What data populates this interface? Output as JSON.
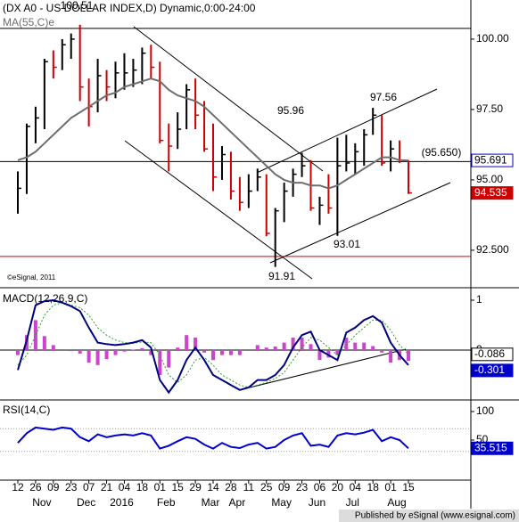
{
  "chart_data": [
    {
      "type": "ohlc",
      "title": "(DX A0 - US DOLLAR INDEX,D) Dynamic,0:00-24:00",
      "categories": [
        "12",
        null,
        "26",
        null,
        "09",
        null,
        "23",
        null,
        "07",
        null,
        "21",
        null,
        "04",
        null,
        "18",
        null,
        "01",
        null,
        "15",
        null,
        "29",
        null,
        "14",
        null,
        "28",
        null,
        "11",
        null,
        "25",
        null,
        "09",
        null,
        "23",
        null,
        "06",
        null,
        "20",
        null,
        "04",
        null,
        "18",
        null,
        "01",
        null,
        "15"
      ],
      "month_categories": [
        null,
        null,
        null,
        "Nov",
        null,
        null,
        null,
        null,
        "Dec",
        null,
        null,
        null,
        "2016",
        null,
        null,
        null,
        null,
        "Feb",
        null,
        null,
        null,
        null,
        "Mar",
        null,
        null,
        "Apr",
        null,
        null,
        null,
        null,
        "May",
        null,
        null,
        null,
        "Jun",
        null,
        null,
        null,
        "Jul",
        null,
        null,
        null,
        null,
        "Aug",
        null
      ],
      "high": [
        95.3,
        97.0,
        97.6,
        99.3,
        99.6,
        100.0,
        100.2,
        100.51,
        98.6,
        99.3,
        98.9,
        99.2,
        99.5,
        99.3,
        99.7,
        99.8,
        99.2,
        97.0,
        97.4,
        98.4,
        98.6,
        97.8,
        97.0,
        96.2,
        96.0,
        95.1,
        95.2,
        95.4,
        95.2,
        94.0,
        94.9,
        95.4,
        95.96,
        95.7,
        94.4,
        95.2,
        96.5,
        96.6,
        96.3,
        96.8,
        97.56,
        97.3,
        96.4,
        96.4,
        95.7
      ],
      "low": [
        93.8,
        94.5,
        96.3,
        96.8,
        98.6,
        98.9,
        99.3,
        97.8,
        96.9,
        97.4,
        97.8,
        97.9,
        98.2,
        98.3,
        98.4,
        98.6,
        96.3,
        95.3,
        96.1,
        96.8,
        96.8,
        96.0,
        94.6,
        95.0,
        94.3,
        93.9,
        94.0,
        94.6,
        93.0,
        91.91,
        93.5,
        94.4,
        95.1,
        93.9,
        93.4,
        93.8,
        93.01,
        95.3,
        95.2,
        95.5,
        96.6,
        95.5,
        95.3,
        95.6,
        94.5
      ],
      "close": [
        94.7,
        96.9,
        97.2,
        99.2,
        99.0,
        99.8,
        100.0,
        98.3,
        97.6,
        98.7,
        98.3,
        98.8,
        98.8,
        98.9,
        99.5,
        99.0,
        96.4,
        96.2,
        96.8,
        98.2,
        97.3,
        96.1,
        95.1,
        95.9,
        94.6,
        94.2,
        94.6,
        95.1,
        93.1,
        93.9,
        94.6,
        95.2,
        95.5,
        94.0,
        94.1,
        94.0,
        95.5,
        95.6,
        96.0,
        96.6,
        97.3,
        95.6,
        96.1,
        95.7,
        94.535
      ],
      "up_color": "#000000",
      "down_color": "#cc0000",
      "series": [
        {
          "name": "MA(55,C)e",
          "color": "#6e6e6e",
          "values": [
            95.7,
            95.8,
            96.0,
            96.3,
            96.6,
            96.9,
            97.2,
            97.4,
            97.6,
            97.8,
            98.0,
            98.1,
            98.3,
            98.4,
            98.5,
            98.6,
            98.5,
            98.2,
            98.0,
            97.9,
            97.8,
            97.6,
            97.3,
            97.0,
            96.7,
            96.4,
            96.1,
            95.8,
            95.5,
            95.2,
            95.0,
            94.9,
            94.9,
            94.8,
            94.8,
            94.7,
            94.8,
            95.0,
            95.2,
            95.4,
            95.6,
            95.8,
            95.8,
            95.7,
            95.691
          ]
        }
      ],
      "ylim": [
        91.2,
        101.39
      ],
      "yticks": [
        {
          "value": 100,
          "label": "100.00"
        },
        {
          "value": 97.5,
          "label": "97.50"
        },
        {
          "value": 95,
          "label": "95.00"
        },
        {
          "value": 92.5,
          "label": "92.500"
        }
      ],
      "levels": [
        {
          "value": 100.38,
          "color": "#000000"
        },
        {
          "value": 95.65,
          "color": "#000000"
        },
        {
          "value": 92.28,
          "color": "#cc0000"
        }
      ],
      "annotations": [
        "100.51",
        "95.96",
        "97.56",
        "93.01",
        "91.91",
        "(95.650)"
      ],
      "footnote": "©eSignal, 2011"
    },
    {
      "type": "macd",
      "title": "MACD(12,26,9,C)",
      "series": [
        {
          "color": "#000080",
          "values": [
            -0.4,
            0.2,
            0.9,
            0.98,
            1.0,
            0.95,
            0.88,
            0.78,
            0.45,
            0.15,
            0.12,
            0.1,
            0.12,
            0.15,
            0.2,
            0.05,
            -0.6,
            -0.85,
            -0.6,
            -0.2,
            0.05,
            -0.2,
            -0.5,
            -0.6,
            -0.7,
            -0.8,
            -0.75,
            -0.6,
            -0.6,
            -0.5,
            -0.3,
            0.05,
            0.3,
            0.37,
            0.0,
            -0.1,
            -0.2,
            0.35,
            0.45,
            0.6,
            0.68,
            0.55,
            0.15,
            -0.1,
            -0.301
          ]
        },
        {
          "color": "#2e9e2e",
          "values": [
            -0.3,
            -0.1,
            0.3,
            0.7,
            0.9,
            0.95,
            0.9,
            0.85,
            0.7,
            0.45,
            0.3,
            0.2,
            0.15,
            0.14,
            0.16,
            0.15,
            -0.1,
            -0.5,
            -0.65,
            -0.5,
            -0.2,
            -0.15,
            -0.3,
            -0.5,
            -0.6,
            -0.7,
            -0.75,
            -0.7,
            -0.65,
            -0.57,
            -0.45,
            -0.2,
            0.05,
            0.25,
            0.2,
            0.05,
            -0.1,
            0.1,
            0.3,
            0.45,
            0.6,
            0.6,
            0.4,
            0.1,
            -0.086
          ]
        }
      ],
      "histogram": {
        "color": "#cc44cc",
        "values": [
          -0.1,
          0.3,
          0.6,
          0.28,
          0.1,
          0,
          -0.02,
          -0.07,
          -0.25,
          -0.3,
          -0.18,
          -0.1,
          -0.03,
          0.01,
          0.04,
          -0.1,
          -0.5,
          -0.35,
          0.05,
          0.3,
          0.25,
          -0.05,
          -0.2,
          -0.1,
          -0.1,
          -0.1,
          0,
          0.1,
          0.05,
          0.07,
          0.15,
          0.25,
          0.25,
          0.12,
          -0.2,
          -0.15,
          -0.1,
          0.25,
          0.15,
          0.15,
          0.08,
          -0.05,
          -0.25,
          -0.2,
          -0.215
        ]
      },
      "ylim": [
        -0.982,
        1.214
      ],
      "yticks": [
        1,
        0
      ]
    },
    {
      "type": "line",
      "title": "RSI(14,C)",
      "series": [
        {
          "color": "#0000cc",
          "values": [
            45,
            62,
            72,
            70,
            68,
            72,
            70,
            55,
            48,
            60,
            55,
            58,
            60,
            58,
            62,
            58,
            35,
            40,
            48,
            55,
            52,
            42,
            35,
            45,
            38,
            36,
            42,
            45,
            35,
            38,
            50,
            58,
            62,
            40,
            42,
            38,
            58,
            62,
            60,
            63,
            68,
            48,
            55,
            50,
            35.515
          ]
        }
      ],
      "ylim": [
        -18.75,
        118.75
      ],
      "yticks": [
        100,
        50
      ],
      "guides": [
        70,
        30
      ]
    }
  ],
  "footer": "Published by eSignal (www.esignal.com)"
}
